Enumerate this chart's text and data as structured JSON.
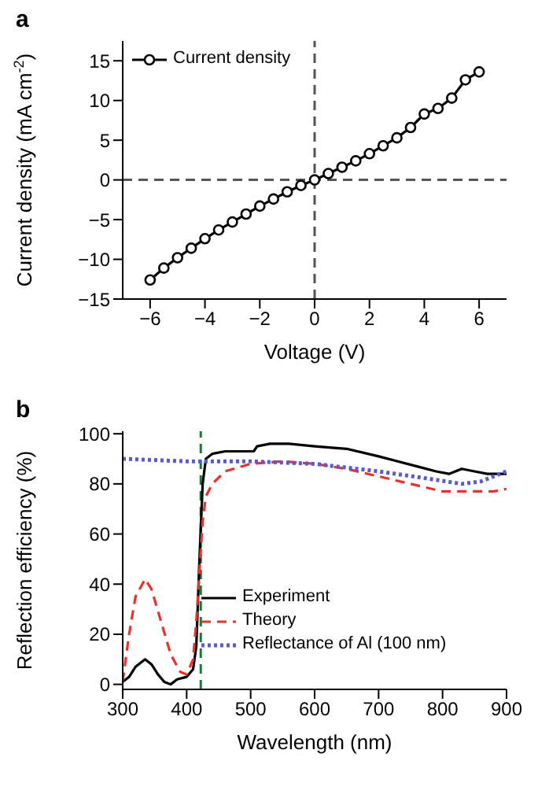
{
  "chart_data": [
    {
      "type": "line",
      "title": "a",
      "xlabel": "Voltage (V)",
      "ylabel": "Current density (mA cm$^{-2}$)",
      "x": [
        -6,
        -5.5,
        -5,
        -4.5,
        -4,
        -3.5,
        -3,
        -2.5,
        -2,
        -1.5,
        -1,
        -0.5,
        0,
        0.5,
        1,
        1.5,
        2,
        2.5,
        3,
        3.5,
        4,
        4.5,
        5,
        5.5,
        6
      ],
      "series": [
        {
          "name": "Current density",
          "color": "#000000",
          "values": [
            -12.6,
            -11.1,
            -9.8,
            -8.6,
            -7.4,
            -6.3,
            -5.3,
            -4.3,
            -3.3,
            -2.4,
            -1.5,
            -0.7,
            0,
            0.8,
            1.6,
            2.4,
            3.3,
            4.3,
            5.3,
            6.6,
            8.3,
            9.0,
            10.3,
            12.6,
            13.6
          ]
        }
      ],
      "xlim": [
        -7,
        7
      ],
      "xticks": [
        -6,
        -4,
        -2,
        0,
        2,
        4,
        6
      ],
      "ylim": [
        -15,
        17.5
      ],
      "yticks": [
        -15,
        -10,
        -5,
        0,
        5,
        10,
        15
      ],
      "marker": "circle",
      "legend": "top left",
      "ref_lines": [
        {
          "axis": "x",
          "value": 0,
          "color": "#555555",
          "line_style": "dashed"
        },
        {
          "axis": "y",
          "value": 0,
          "color": "#555555",
          "line_style": "dashed"
        }
      ]
    },
    {
      "type": "line",
      "title": "b",
      "xlabel": "Wavelength (nm)",
      "ylabel": "Reflection efficiency (%)",
      "legend": "bottom right",
      "series": [
        {
          "name": "Experiment",
          "color": "#000000",
          "line_style": "solid",
          "x": [
            300,
            310,
            320,
            335,
            345,
            355,
            365,
            375,
            385,
            400,
            410,
            415,
            420,
            425,
            430,
            440,
            460,
            480,
            500,
            505,
            510,
            530,
            560,
            600,
            650,
            700,
            730,
            760,
            790,
            810,
            830,
            850,
            870,
            900
          ],
          "values": [
            1,
            3,
            7,
            10,
            8,
            4,
            1,
            0,
            2,
            3,
            6,
            15,
            50,
            80,
            90,
            92,
            93,
            93,
            93,
            93,
            95,
            96,
            96,
            95,
            94,
            91,
            89,
            87,
            85,
            84,
            86,
            85,
            84,
            84
          ]
        },
        {
          "name": "Theory",
          "color": "#e8322a",
          "line_style": "dashed",
          "x": [
            300,
            310,
            320,
            335,
            345,
            360,
            375,
            390,
            400,
            410,
            415,
            420,
            425,
            430,
            440,
            460,
            500,
            550,
            600,
            650,
            700,
            750,
            800,
            830,
            860,
            880,
            900
          ],
          "values": [
            1,
            20,
            35,
            42,
            38,
            25,
            12,
            5,
            4,
            10,
            25,
            45,
            65,
            75,
            80,
            85,
            88,
            89,
            88,
            86,
            83,
            80,
            77,
            77,
            77,
            77,
            78
          ]
        },
        {
          "name": "Reflectance of Al (100 nm)",
          "color": "#5a5ad0",
          "line_style": "dotted",
          "x": [
            300,
            400,
            500,
            600,
            700,
            780,
            830,
            860,
            900
          ],
          "values": [
            90,
            89,
            89,
            88,
            85,
            82,
            80,
            81,
            85
          ]
        }
      ],
      "xlim": [
        300,
        900
      ],
      "xticks": [
        300,
        400,
        500,
        600,
        700,
        800,
        900
      ],
      "ylim": [
        -2,
        101
      ],
      "yticks": [
        0,
        20,
        40,
        60,
        80,
        100
      ],
      "ref_lines": [
        {
          "axis": "x",
          "value": 422,
          "color": "#1a7a3a",
          "line_style": "dashed"
        }
      ]
    }
  ]
}
